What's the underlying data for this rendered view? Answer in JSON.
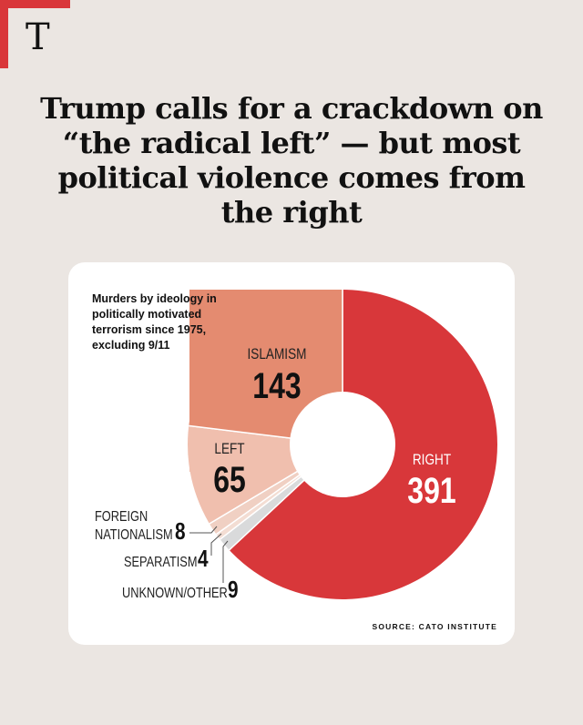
{
  "logo": "T",
  "headline": "Trump calls for a crackdown on “the radical left” — but most political violence comes from the right",
  "note": "Murders by ideology in politically motivated terrorism since 1975, excluding 9/11",
  "source": "SOURCE: CATO INSTITUTE",
  "colors": {
    "accent": "#d9373a",
    "background": "#ebe6e2"
  },
  "chart_data": {
    "type": "pie",
    "title": "Murders by ideology in politically motivated terrorism since 1975, excluding 9/11",
    "categories": [
      "RIGHT",
      "UNKNOWN/OTHER",
      "SEPARATISM",
      "FOREIGN NATIONALISM",
      "LEFT",
      "ISLAMISM"
    ],
    "values": [
      391,
      9,
      4,
      8,
      65,
      143
    ],
    "colors": [
      "#d8373a",
      "#d9dadb",
      "#f3ddd3",
      "#f0d0c3",
      "#f0bfae",
      "#e48b70"
    ]
  }
}
